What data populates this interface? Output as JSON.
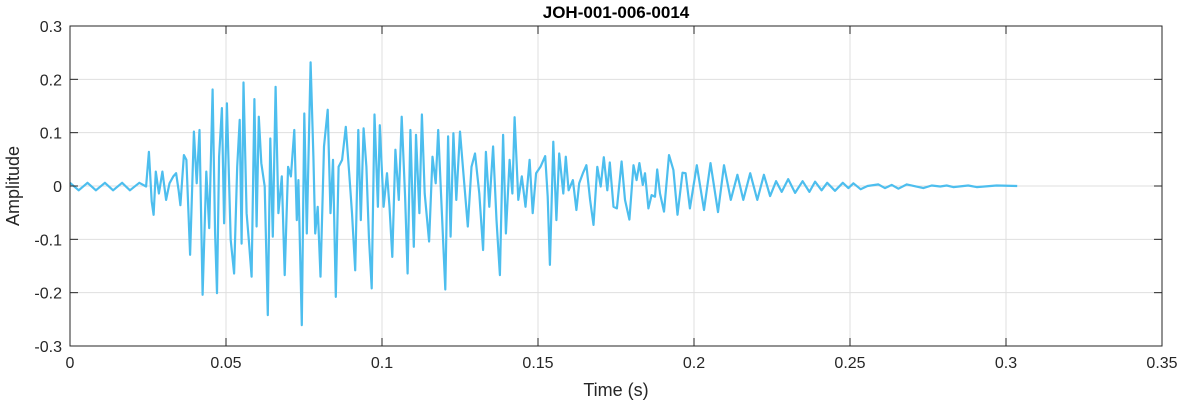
{
  "chart_data": {
    "type": "line",
    "title": "JOH-001-006-0014",
    "xlabel": "Time (s)",
    "ylabel": "Amplitude",
    "xlim": [
      0,
      0.35
    ],
    "ylim": [
      -0.3,
      0.3
    ],
    "xticks": [
      0,
      0.05,
      0.1,
      0.15,
      0.2,
      0.25,
      0.3,
      0.35
    ],
    "xtick_labels": [
      "0",
      "0.05",
      "0.1",
      "0.15",
      "0.2",
      "0.25",
      "0.3",
      "0.35"
    ],
    "yticks": [
      -0.3,
      -0.2,
      -0.1,
      0,
      0.1,
      0.2,
      0.3
    ],
    "ytick_labels": [
      "-0.3",
      "-0.2",
      "-0.1",
      "0",
      "0.1",
      "0.2",
      "0.3"
    ],
    "grid": true,
    "line_color": "#4DBEEE",
    "series": [
      {
        "points": [
          [
            0,
            0.006
          ],
          [
            0.0028,
            -0.008
          ],
          [
            0.0056,
            0.006
          ],
          [
            0.0083,
            -0.008
          ],
          [
            0.0112,
            0.006
          ],
          [
            0.0138,
            -0.008
          ],
          [
            0.0167,
            0.006
          ],
          [
            0.0192,
            -0.008
          ],
          [
            0.0222,
            0.006
          ],
          [
            0.0244,
            -0.001
          ],
          [
            0.0253,
            0.064
          ],
          [
            0.0262,
            -0.029
          ],
          [
            0.0268,
            -0.054
          ],
          [
            0.0275,
            0.027
          ],
          [
            0.0285,
            -0.014
          ],
          [
            0.0296,
            0.027
          ],
          [
            0.0308,
            -0.026
          ],
          [
            0.0319,
            0.005
          ],
          [
            0.0331,
            0.018
          ],
          [
            0.034,
            0.024
          ],
          [
            0.0348,
            -0.008
          ],
          [
            0.0354,
            -0.036
          ],
          [
            0.0365,
            0.058
          ],
          [
            0.0373,
            0.049
          ],
          [
            0.0385,
            -0.129
          ],
          [
            0.0397,
            0.102
          ],
          [
            0.0406,
            0.005
          ],
          [
            0.0415,
            0.105
          ],
          [
            0.0425,
            -0.204
          ],
          [
            0.0437,
            0.027
          ],
          [
            0.0446,
            -0.079
          ],
          [
            0.0457,
            0.181
          ],
          [
            0.0465,
            -0.089
          ],
          [
            0.0471,
            -0.201
          ],
          [
            0.0478,
            0.055
          ],
          [
            0.0487,
            0.146
          ],
          [
            0.0494,
            -0.07
          ],
          [
            0.0503,
            0.155
          ],
          [
            0.0515,
            -0.101
          ],
          [
            0.0526,
            -0.164
          ],
          [
            0.0536,
            0.036
          ],
          [
            0.0544,
            0.124
          ],
          [
            0.055,
            -0.108
          ],
          [
            0.0556,
            0.194
          ],
          [
            0.0566,
            -0.051
          ],
          [
            0.0573,
            -0.101
          ],
          [
            0.0582,
            -0.17
          ],
          [
            0.0591,
            0.163
          ],
          [
            0.0598,
            -0.076
          ],
          [
            0.0605,
            0.13
          ],
          [
            0.0613,
            0.043
          ],
          [
            0.0624,
            -0.001
          ],
          [
            0.0634,
            -0.242
          ],
          [
            0.0642,
            0.089
          ],
          [
            0.065,
            -0.095
          ],
          [
            0.0659,
            0.186
          ],
          [
            0.0668,
            -0.051
          ],
          [
            0.0679,
            0.018
          ],
          [
            0.0688,
            -0.167
          ],
          [
            0.0699,
            0.036
          ],
          [
            0.0708,
            0.018
          ],
          [
            0.0719,
            0.105
          ],
          [
            0.0727,
            -0.064
          ],
          [
            0.0732,
            0.011
          ],
          [
            0.0743,
            -0.261
          ],
          [
            0.0751,
            0.136
          ],
          [
            0.0759,
            -0.089
          ],
          [
            0.0771,
            0.232
          ],
          [
            0.078,
            0.055
          ],
          [
            0.0786,
            -0.089
          ],
          [
            0.0794,
            -0.039
          ],
          [
            0.0803,
            -0.17
          ],
          [
            0.0814,
            0.074
          ],
          [
            0.0826,
            0.143
          ],
          [
            0.0835,
            -0.051
          ],
          [
            0.0843,
            0.049
          ],
          [
            0.0852,
            -0.208
          ],
          [
            0.0861,
            0.036
          ],
          [
            0.0872,
            0.049
          ],
          [
            0.0884,
            0.111
          ],
          [
            0.0895,
            0.024
          ],
          [
            0.0904,
            -0.051
          ],
          [
            0.0914,
            -0.158
          ],
          [
            0.0924,
            0.105
          ],
          [
            0.0932,
            -0.064
          ],
          [
            0.0941,
            0.108
          ],
          [
            0.095,
            0.036
          ],
          [
            0.0958,
            -0.095
          ],
          [
            0.0967,
            -0.192
          ],
          [
            0.0976,
            0.134
          ],
          [
            0.0987,
            -0.039
          ],
          [
            0.0993,
            0.114
          ],
          [
            0.1005,
            -0.039
          ],
          [
            0.1016,
            0.024
          ],
          [
            0.1024,
            -0.039
          ],
          [
            0.1033,
            -0.133
          ],
          [
            0.1043,
            0.068
          ],
          [
            0.1054,
            -0.026
          ],
          [
            0.1063,
            0.13
          ],
          [
            0.1074,
            -0.02
          ],
          [
            0.1082,
            -0.164
          ],
          [
            0.1091,
            0.105
          ],
          [
            0.1102,
            -0.114
          ],
          [
            0.1109,
            0.096
          ],
          [
            0.112,
            -0.051
          ],
          [
            0.1128,
            0.134
          ],
          [
            0.1137,
            -0.014
          ],
          [
            0.1151,
            -0.104
          ],
          [
            0.1162,
            0.055
          ],
          [
            0.1172,
            0.005
          ],
          [
            0.118,
            0.105
          ],
          [
            0.119,
            -0.026
          ],
          [
            0.1203,
            -0.194
          ],
          [
            0.1212,
            0.093
          ],
          [
            0.122,
            -0.095
          ],
          [
            0.1229,
            0.099
          ],
          [
            0.1238,
            -0.026
          ],
          [
            0.125,
            0.102
          ],
          [
            0.1261,
            0.024
          ],
          [
            0.1275,
            -0.076
          ],
          [
            0.1287,
            0.036
          ],
          [
            0.1298,
            0.061
          ],
          [
            0.1312,
            -0.014
          ],
          [
            0.1324,
            -0.12
          ],
          [
            0.1333,
            0.064
          ],
          [
            0.1344,
            -0.039
          ],
          [
            0.1356,
            0.074
          ],
          [
            0.1367,
            -0.064
          ],
          [
            0.1378,
            -0.167
          ],
          [
            0.1388,
            0.096
          ],
          [
            0.1397,
            -0.089
          ],
          [
            0.1409,
            0.049
          ],
          [
            0.1418,
            -0.014
          ],
          [
            0.1425,
            0.129
          ],
          [
            0.1437,
            -0.026
          ],
          [
            0.1448,
            0.018
          ],
          [
            0.146,
            -0.039
          ],
          [
            0.1473,
            0.049
          ],
          [
            0.1483,
            -0.051
          ],
          [
            0.1494,
            0.024
          ],
          [
            0.1508,
            0.036
          ],
          [
            0.1523,
            0.056
          ],
          [
            0.1531,
            -0.02
          ],
          [
            0.1538,
            -0.148
          ],
          [
            0.1549,
            0.083
          ],
          [
            0.1559,
            -0.064
          ],
          [
            0.1568,
            0.061
          ],
          [
            0.1581,
            -0.014
          ],
          [
            0.1589,
            0.055
          ],
          [
            0.1598,
            -0.008
          ],
          [
            0.1612,
            0.011
          ],
          [
            0.1623,
            -0.045
          ],
          [
            0.1632,
            0.005
          ],
          [
            0.1644,
            0.024
          ],
          [
            0.1655,
            0.039
          ],
          [
            0.1667,
            -0.026
          ],
          [
            0.1678,
            -0.073
          ],
          [
            0.169,
            0.036
          ],
          [
            0.1701,
            -0.001
          ],
          [
            0.1711,
            0.054
          ],
          [
            0.1722,
            -0.008
          ],
          [
            0.173,
            0.044
          ],
          [
            0.1742,
            -0.039
          ],
          [
            0.1753,
            -0.042
          ],
          [
            0.1768,
            0.046
          ],
          [
            0.1779,
            -0.026
          ],
          [
            0.1793,
            -0.063
          ],
          [
            0.1806,
            0.039
          ],
          [
            0.1816,
            0.011
          ],
          [
            0.1825,
            0.043
          ],
          [
            0.1836,
            0.002
          ],
          [
            0.1843,
            0.024
          ],
          [
            0.1854,
            -0.042
          ],
          [
            0.1864,
            -0.017
          ],
          [
            0.1875,
            -0.02
          ],
          [
            0.1882,
            0.031
          ],
          [
            0.1891,
            -0.014
          ],
          [
            0.1904,
            -0.048
          ],
          [
            0.192,
            0.058
          ],
          [
            0.1934,
            0.03
          ],
          [
            0.1947,
            -0.054
          ],
          [
            0.1963,
            0.025
          ],
          [
            0.1973,
            0.024
          ],
          [
            0.1987,
            -0.042
          ],
          [
            0.2009,
            0.039
          ],
          [
            0.2032,
            -0.045
          ],
          [
            0.2053,
            0.043
          ],
          [
            0.2077,
            -0.049
          ],
          [
            0.2096,
            0.039
          ],
          [
            0.2118,
            -0.026
          ],
          [
            0.2139,
            0.021
          ],
          [
            0.2158,
            -0.026
          ],
          [
            0.218,
            0.024
          ],
          [
            0.2203,
            -0.026
          ],
          [
            0.2224,
            0.021
          ],
          [
            0.2244,
            -0.019
          ],
          [
            0.2263,
            0.009
          ],
          [
            0.2281,
            -0.011
          ],
          [
            0.2302,
            0.013
          ],
          [
            0.2324,
            -0.013
          ],
          [
            0.2348,
            0.009
          ],
          [
            0.237,
            -0.011
          ],
          [
            0.2388,
            0.008
          ],
          [
            0.2409,
            -0.008
          ],
          [
            0.2427,
            0.006
          ],
          [
            0.2452,
            -0.009
          ],
          [
            0.2477,
            0.006
          ],
          [
            0.2495,
            -0.004
          ],
          [
            0.2511,
            0.005
          ],
          [
            0.2534,
            -0.006
          ],
          [
            0.2556,
            0
          ],
          [
            0.2591,
            0.003
          ],
          [
            0.2612,
            -0.004
          ],
          [
            0.2634,
            0.002
          ],
          [
            0.2655,
            -0.005
          ],
          [
            0.2682,
            0.003
          ],
          [
            0.2735,
            -0.004
          ],
          [
            0.2762,
            0.001
          ],
          [
            0.2789,
            -0.001
          ],
          [
            0.281,
            0.001
          ],
          [
            0.2831,
            -0.002
          ],
          [
            0.2879,
            0.001
          ],
          [
            0.2906,
            -0.002
          ],
          [
            0.297,
            0.001
          ],
          [
            0.3036,
            0
          ]
        ]
      }
    ]
  }
}
